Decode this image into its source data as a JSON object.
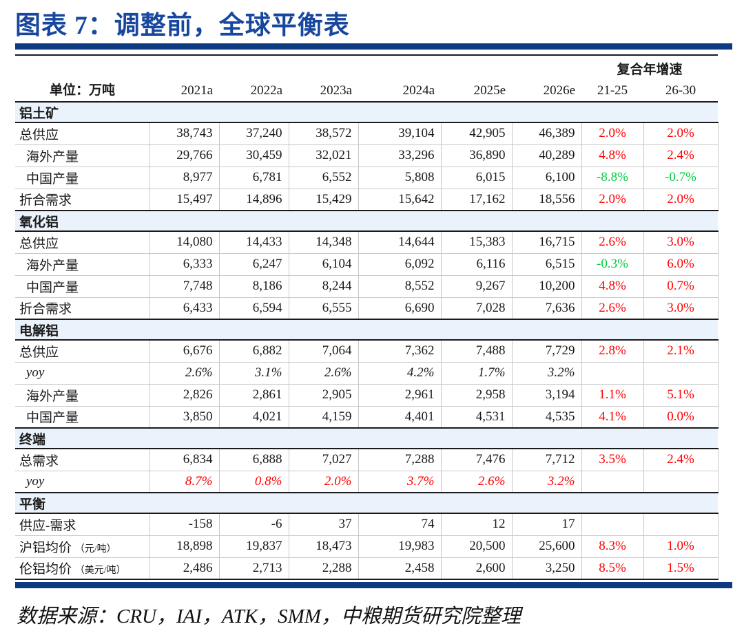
{
  "page": {
    "title": "图表 7：调整前，全球平衡表",
    "source_note": "数据来源：CRU，IAI，ATK，SMM，中粮期货研究院整理"
  },
  "colors": {
    "title_blue": "#17479E",
    "rule_navy": "#0E3A82",
    "section_bg": "#EAF2FB",
    "growth_red": "#FF0000",
    "growth_green": "#00CC44"
  },
  "table": {
    "unit_label": "单位：万吨",
    "cagr_group_label": "复合年增速",
    "year_columns": [
      "2021a",
      "2022a",
      "2023a",
      "2024a",
      "2025e",
      "2026e"
    ],
    "cagr_columns": [
      "21-25",
      "26-30"
    ],
    "sections": [
      {
        "name": "铝土矿",
        "rows": [
          {
            "label": "总供应",
            "indent": 0,
            "values": [
              "38,743",
              "37,240",
              "38,572",
              "39,104",
              "42,905",
              "46,389"
            ],
            "cagr": [
              "2.0%",
              "2.0%"
            ],
            "cagr_colors": [
              "red",
              "red"
            ]
          },
          {
            "label": "海外产量",
            "indent": 1,
            "values": [
              "29,766",
              "30,459",
              "32,021",
              "33,296",
              "36,890",
              "40,289"
            ],
            "cagr": [
              "4.8%",
              "2.4%"
            ],
            "cagr_colors": [
              "red",
              "red"
            ]
          },
          {
            "label": "中国产量",
            "indent": 1,
            "values": [
              "8,977",
              "6,781",
              "6,552",
              "5,808",
              "6,015",
              "6,100"
            ],
            "cagr": [
              "-8.8%",
              "-0.7%"
            ],
            "cagr_colors": [
              "green",
              "green"
            ]
          },
          {
            "label": "折合需求",
            "indent": 0,
            "values": [
              "15,497",
              "14,896",
              "15,429",
              "15,642",
              "17,162",
              "18,556"
            ],
            "cagr": [
              "2.0%",
              "2.0%"
            ],
            "cagr_colors": [
              "red",
              "red"
            ]
          }
        ]
      },
      {
        "name": "氧化铝",
        "rows": [
          {
            "label": "总供应",
            "indent": 0,
            "values": [
              "14,080",
              "14,433",
              "14,348",
              "14,644",
              "15,383",
              "16,715"
            ],
            "cagr": [
              "2.6%",
              "3.0%"
            ],
            "cagr_colors": [
              "red",
              "red"
            ]
          },
          {
            "label": "海外产量",
            "indent": 1,
            "values": [
              "6,333",
              "6,247",
              "6,104",
              "6,092",
              "6,116",
              "6,515"
            ],
            "cagr": [
              "-0.3%",
              "6.0%"
            ],
            "cagr_colors": [
              "green",
              "red"
            ]
          },
          {
            "label": "中国产量",
            "indent": 1,
            "values": [
              "7,748",
              "8,186",
              "8,244",
              "8,552",
              "9,267",
              "10,200"
            ],
            "cagr": [
              "4.8%",
              "0.7%"
            ],
            "cagr_colors": [
              "red",
              "red"
            ]
          },
          {
            "label": "折合需求",
            "indent": 0,
            "values": [
              "6,433",
              "6,594",
              "6,555",
              "6,690",
              "7,028",
              "7,636"
            ],
            "cagr": [
              "2.6%",
              "3.0%"
            ],
            "cagr_colors": [
              "red",
              "red"
            ]
          }
        ]
      },
      {
        "name": "电解铝",
        "rows": [
          {
            "label": "总供应",
            "indent": 0,
            "values": [
              "6,676",
              "6,882",
              "7,064",
              "7,362",
              "7,488",
              "7,729"
            ],
            "cagr": [
              "2.8%",
              "2.1%"
            ],
            "cagr_colors": [
              "red",
              "red"
            ]
          },
          {
            "label": "yoy",
            "indent": 1,
            "italic": true,
            "values": [
              "2.6%",
              "3.1%",
              "2.6%",
              "4.2%",
              "1.7%",
              "3.2%"
            ],
            "cagr": [
              "",
              ""
            ],
            "cagr_colors": [
              "",
              ""
            ]
          },
          {
            "label": "海外产量",
            "indent": 1,
            "values": [
              "2,826",
              "2,861",
              "2,905",
              "2,961",
              "2,958",
              "3,194"
            ],
            "cagr": [
              "1.1%",
              "5.1%"
            ],
            "cagr_colors": [
              "red",
              "red"
            ]
          },
          {
            "label": "中国产量",
            "indent": 1,
            "values": [
              "3,850",
              "4,021",
              "4,159",
              "4,401",
              "4,531",
              "4,535"
            ],
            "cagr": [
              "4.1%",
              "0.0%"
            ],
            "cagr_colors": [
              "red",
              "red"
            ]
          }
        ]
      },
      {
        "name": "终端",
        "rows": [
          {
            "label": "总需求",
            "indent": 0,
            "values": [
              "6,834",
              "6,888",
              "7,027",
              "7,288",
              "7,476",
              "7,712"
            ],
            "cagr": [
              "3.5%",
              "2.4%"
            ],
            "cagr_colors": [
              "red",
              "red"
            ]
          },
          {
            "label": "yoy",
            "indent": 1,
            "italic": true,
            "value_color": "red",
            "values": [
              "8.7%",
              "0.8%",
              "2.0%",
              "3.7%",
              "2.6%",
              "3.2%"
            ],
            "cagr": [
              "",
              ""
            ],
            "cagr_colors": [
              "",
              ""
            ]
          }
        ]
      },
      {
        "name": "平衡",
        "rows": [
          {
            "label": "供应-需求",
            "indent": 0,
            "values": [
              "-158",
              "-6",
              "37",
              "74",
              "12",
              "17"
            ],
            "cagr": [
              "",
              ""
            ],
            "cagr_colors": [
              "",
              ""
            ]
          },
          {
            "label": "沪铝均价",
            "unit": "（元/吨）",
            "indent": 0,
            "values": [
              "18,898",
              "19,837",
              "18,473",
              "19,983",
              "20,500",
              "25,600"
            ],
            "cagr": [
              "8.3%",
              "1.0%"
            ],
            "cagr_colors": [
              "red",
              "red"
            ]
          },
          {
            "label": "伦铝均价",
            "unit": "（美元/吨）",
            "indent": 0,
            "values": [
              "2,486",
              "2,713",
              "2,288",
              "2,458",
              "2,600",
              "3,250"
            ],
            "cagr": [
              "8.5%",
              "1.5%"
            ],
            "cagr_colors": [
              "red",
              "red"
            ]
          }
        ]
      }
    ]
  }
}
